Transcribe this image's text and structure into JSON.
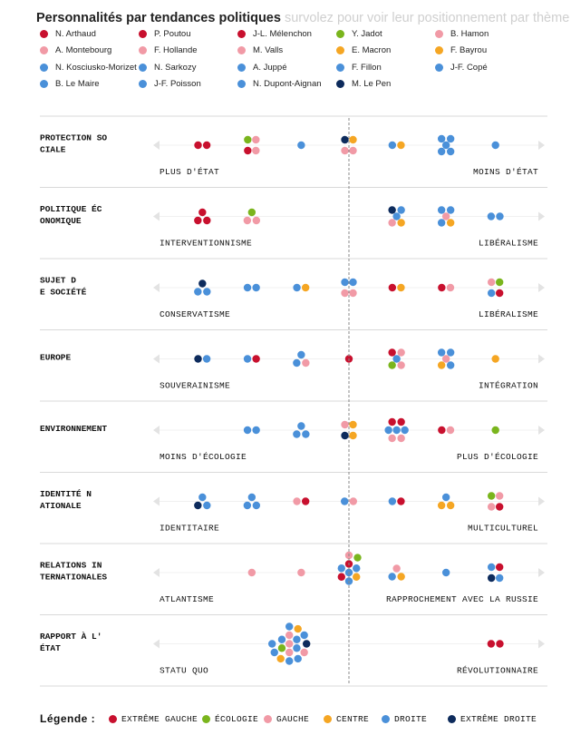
{
  "title": "Personnalités par tendances politiques",
  "subtitle": "survolez pour voir leur positionnement par thème",
  "colors": {
    "extreme_gauche": "#c8102e",
    "ecologie": "#7ab51d",
    "gauche": "#f19aa6",
    "centre": "#f5a623",
    "droite": "#4a90d9",
    "extreme_droite": "#0d2b5c",
    "rule": "#d9d9d9",
    "arrow": "#e3e3e3",
    "center_line": "#888888"
  },
  "personalities": [
    {
      "name": "N. Arthaud",
      "family": "extreme_gauche"
    },
    {
      "name": "P. Poutou",
      "family": "extreme_gauche"
    },
    {
      "name": "J-L. Mélenchon",
      "family": "extreme_gauche"
    },
    {
      "name": "Y. Jadot",
      "family": "ecologie"
    },
    {
      "name": "B. Hamon",
      "family": "gauche"
    },
    {
      "name": "A. Montebourg",
      "family": "gauche"
    },
    {
      "name": "F. Hollande",
      "family": "gauche"
    },
    {
      "name": "M. Valls",
      "family": "gauche"
    },
    {
      "name": "E. Macron",
      "family": "centre"
    },
    {
      "name": "F. Bayrou",
      "family": "centre"
    },
    {
      "name": "N. Kosciusko-Morizet",
      "family": "droite"
    },
    {
      "name": "N. Sarkozy",
      "family": "droite"
    },
    {
      "name": "A. Juppé",
      "family": "droite"
    },
    {
      "name": "F. Fillon",
      "family": "droite"
    },
    {
      "name": "J-F. Copé",
      "family": "droite"
    },
    {
      "name": "B. Le Maire",
      "family": "droite"
    },
    {
      "name": "J-F. Poisson",
      "family": "droite"
    },
    {
      "name": "N. Dupont-Aignan",
      "family": "droite"
    },
    {
      "name": "M. Le Pen",
      "family": "extreme_droite"
    }
  ],
  "legend": {
    "title": "Légende :",
    "items": [
      {
        "family": "extreme_gauche",
        "label": "EXTRÊME GAUCHE"
      },
      {
        "family": "ecologie",
        "label": "ÉCOLOGIE"
      },
      {
        "family": "gauche",
        "label": "GAUCHE"
      },
      {
        "family": "centre",
        "label": "CENTRE"
      },
      {
        "family": "droite",
        "label": "DROITE"
      },
      {
        "family": "extreme_droite",
        "label": "EXTRÊME DROITE"
      }
    ]
  },
  "chart_data": {
    "type": "scatter",
    "x_scale": "position from left pole (-1) to right pole (+1), 0 = centre",
    "xlim": [
      -1,
      1
    ],
    "themes": [
      {
        "label_lines": [
          "PROTECTION SO",
          "CIALE"
        ],
        "left": "PLUS D'ÉTAT",
        "right": "MOINS D'ÉTAT",
        "groups": [
          {
            "x": -0.86,
            "dots": [
              "extreme_gauche",
              "extreme_gauche"
            ]
          },
          {
            "x": -0.57,
            "dots": [
              "ecologie",
              "gauche",
              "extreme_gauche",
              "gauche"
            ]
          },
          {
            "x": -0.28,
            "dots": [
              "droite"
            ]
          },
          {
            "x": 0.0,
            "dots": [
              "extreme_droite",
              "centre",
              "gauche",
              "gauche"
            ]
          },
          {
            "x": 0.28,
            "dots": [
              "droite",
              "centre"
            ]
          },
          {
            "x": 0.57,
            "dots": [
              "droite",
              "droite",
              "droite",
              "droite",
              "droite"
            ]
          },
          {
            "x": 0.86,
            "dots": [
              "droite"
            ]
          }
        ]
      },
      {
        "label_lines": [
          "POLITIQUE ÉC",
          "ONOMIQUE"
        ],
        "left": "INTERVENTIONNISME",
        "right": "LIBÉRALISME",
        "groups": [
          {
            "x": -0.86,
            "dots": [
              "extreme_gauche",
              "extreme_gauche",
              "extreme_gauche"
            ]
          },
          {
            "x": -0.57,
            "dots": [
              "ecologie",
              "gauche",
              "gauche"
            ]
          },
          {
            "x": 0.28,
            "dots": [
              "extreme_droite",
              "droite",
              "droite",
              "gauche",
              "centre"
            ]
          },
          {
            "x": 0.57,
            "dots": [
              "droite",
              "droite",
              "gauche",
              "droite",
              "centre"
            ]
          },
          {
            "x": 0.86,
            "dots": [
              "droite",
              "droite"
            ]
          }
        ]
      },
      {
        "label_lines": [
          "SUJET D",
          "E SOCIÉTÉ"
        ],
        "left": "CONSERVATISME",
        "right": "LIBÉRALISME",
        "groups": [
          {
            "x": -0.86,
            "dots": [
              "extreme_droite",
              "droite",
              "droite"
            ]
          },
          {
            "x": -0.57,
            "dots": [
              "droite",
              "droite"
            ]
          },
          {
            "x": -0.28,
            "dots": [
              "droite",
              "centre"
            ]
          },
          {
            "x": 0.0,
            "dots": [
              "droite",
              "droite",
              "gauche",
              "gauche"
            ]
          },
          {
            "x": 0.28,
            "dots": [
              "extreme_gauche",
              "centre"
            ]
          },
          {
            "x": 0.57,
            "dots": [
              "extreme_gauche",
              "gauche"
            ]
          },
          {
            "x": 0.86,
            "dots": [
              "gauche",
              "ecologie",
              "droite",
              "extreme_gauche"
            ]
          }
        ]
      },
      {
        "label_lines": [
          "EUROPE"
        ],
        "left": "SOUVERAINISME",
        "right": "INTÉGRATION",
        "groups": [
          {
            "x": -0.86,
            "dots": [
              "extreme_droite",
              "droite"
            ]
          },
          {
            "x": -0.57,
            "dots": [
              "droite",
              "extreme_gauche"
            ]
          },
          {
            "x": -0.28,
            "dots": [
              "droite",
              "droite",
              "gauche"
            ]
          },
          {
            "x": 0.0,
            "dots": [
              "extreme_gauche"
            ]
          },
          {
            "x": 0.28,
            "dots": [
              "extreme_gauche",
              "gauche",
              "droite",
              "ecologie",
              "gauche"
            ]
          },
          {
            "x": 0.57,
            "dots": [
              "droite",
              "droite",
              "gauche",
              "centre",
              "droite"
            ]
          },
          {
            "x": 0.86,
            "dots": [
              "centre"
            ]
          }
        ]
      },
      {
        "label_lines": [
          "ENVIRONNEMENT"
        ],
        "left": "MOINS D'ÉCOLOGIE",
        "right": "PLUS D'ÉCOLOGIE",
        "groups": [
          {
            "x": -0.57,
            "dots": [
              "droite",
              "droite"
            ]
          },
          {
            "x": -0.28,
            "dots": [
              "droite",
              "droite",
              "droite"
            ]
          },
          {
            "x": 0.0,
            "dots": [
              "gauche",
              "centre",
              "extreme_droite",
              "centre"
            ]
          },
          {
            "x": 0.28,
            "dots": [
              "extreme_gauche",
              "extreme_gauche",
              "droite",
              "droite",
              "droite",
              "gauche",
              "gauche"
            ]
          },
          {
            "x": 0.57,
            "dots": [
              "extreme_gauche",
              "gauche"
            ]
          },
          {
            "x": 0.86,
            "dots": [
              "ecologie"
            ]
          }
        ]
      },
      {
        "label_lines": [
          "IDENTITÉ N",
          "ATIONALE"
        ],
        "left": "IDENTITAIRE",
        "right": "MULTICULTUREL",
        "groups": [
          {
            "x": -0.86,
            "dots": [
              "droite",
              "extreme_droite",
              "droite"
            ]
          },
          {
            "x": -0.57,
            "dots": [
              "droite",
              "droite",
              "droite"
            ]
          },
          {
            "x": -0.28,
            "dots": [
              "gauche",
              "extreme_gauche"
            ]
          },
          {
            "x": 0.0,
            "dots": [
              "droite",
              "gauche"
            ]
          },
          {
            "x": 0.28,
            "dots": [
              "droite",
              "extreme_gauche"
            ]
          },
          {
            "x": 0.57,
            "dots": [
              "droite",
              "centre",
              "centre"
            ]
          },
          {
            "x": 0.86,
            "dots": [
              "ecologie",
              "gauche",
              "gauche",
              "extreme_gauche"
            ]
          }
        ]
      },
      {
        "label_lines": [
          "RELATIONS IN",
          "TERNATIONALES"
        ],
        "left": "ATLANTISME",
        "right": "RAPPROCHEMENT AVEC LA RUSSIE",
        "groups": [
          {
            "x": -0.57,
            "dots": [
              "gauche"
            ]
          },
          {
            "x": -0.28,
            "dots": [
              "gauche"
            ]
          },
          {
            "x": 0.0,
            "dots": [
              "droite",
              "extreme_gauche",
              "droite",
              "centre",
              "droite",
              "extreme_gauche",
              "droite",
              "gauche",
              "ecologie"
            ]
          },
          {
            "x": 0.28,
            "dots": [
              "gauche",
              "droite",
              "centre"
            ]
          },
          {
            "x": 0.57,
            "dots": [
              "droite"
            ]
          },
          {
            "x": 0.86,
            "dots": [
              "droite",
              "extreme_gauche",
              "extreme_droite",
              "droite"
            ]
          }
        ]
      },
      {
        "label_lines": [
          "RAPPORT À L'",
          "ÉTAT"
        ],
        "left": "STATU QUO",
        "right": "RÉVOLUTIONNAIRE",
        "groups": [
          {
            "x": -0.35,
            "dots": [
              "gauche",
              "gauche",
              "droite",
              "droite",
              "gauche",
              "ecologie",
              "droite",
              "droite",
              "centre",
              "droite",
              "extreme_droite",
              "gauche",
              "droite",
              "droite",
              "centre",
              "droite",
              "droite"
            ]
          },
          {
            "x": 0.86,
            "dots": [
              "extreme_gauche",
              "extreme_gauche"
            ]
          }
        ]
      }
    ]
  }
}
